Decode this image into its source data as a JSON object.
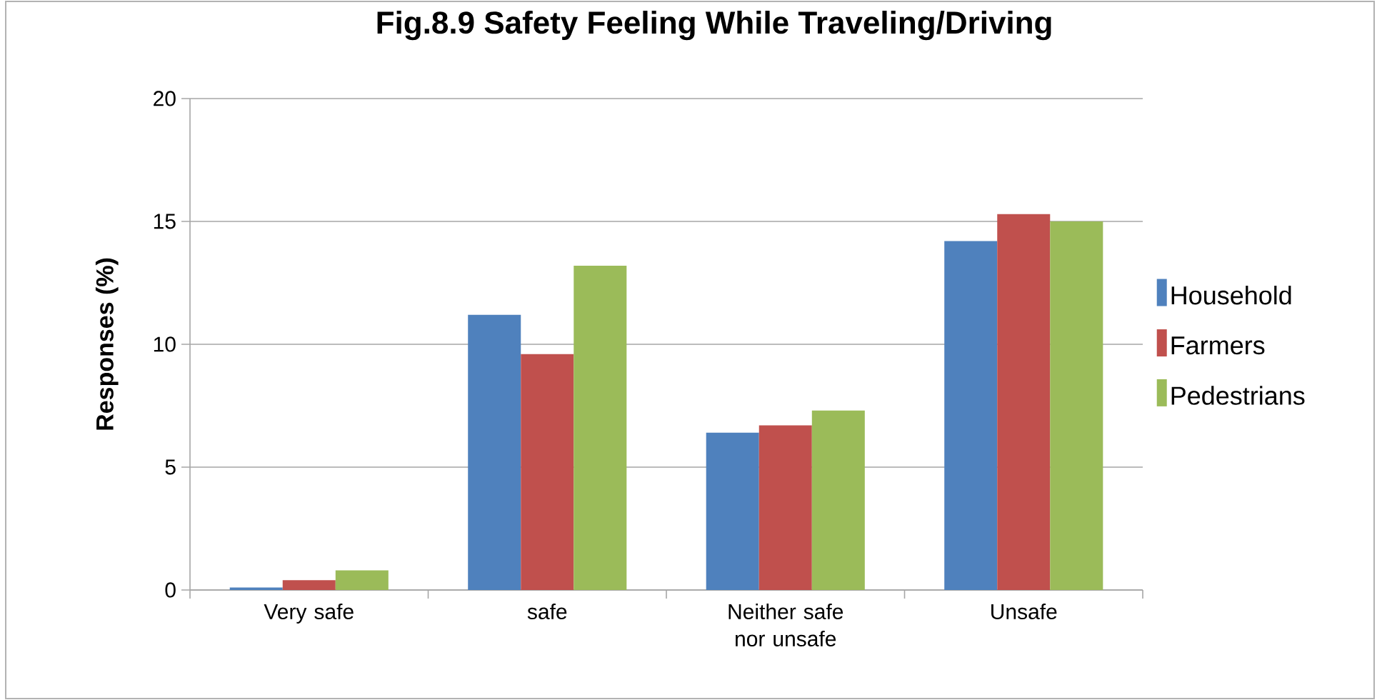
{
  "chart_data": {
    "type": "bar",
    "title": "Fig.8.9 Safety Feeling While Traveling/Driving",
    "ylabel": "Responses (%)",
    "categories": [
      "Very safe",
      "safe",
      "Neither safe nor unsafe",
      "Unsafe"
    ],
    "series": [
      {
        "name": "Household",
        "color": "#4f81bd",
        "values": [
          0.1,
          11.2,
          6.4,
          14.2
        ]
      },
      {
        "name": "Farmers",
        "color": "#c0504d",
        "values": [
          0.4,
          9.6,
          6.7,
          15.3
        ]
      },
      {
        "name": "Pedestrians",
        "color": "#9bbb59",
        "values": [
          0.8,
          13.2,
          7.3,
          15.0
        ]
      }
    ],
    "ylim": [
      0,
      20
    ],
    "yticks": [
      0,
      5,
      10,
      15,
      20
    ],
    "grid": "y",
    "legend": "right"
  }
}
